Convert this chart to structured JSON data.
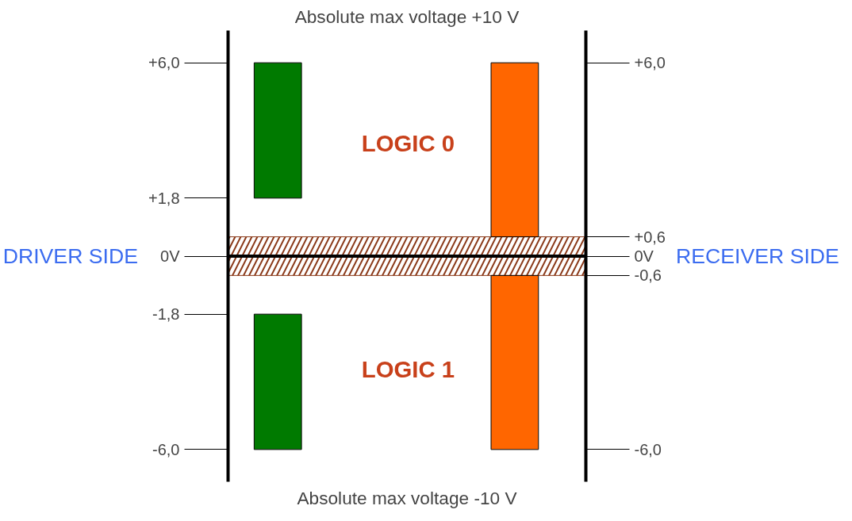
{
  "chart_data": {
    "type": "bar",
    "title": "Absolute max voltage +10 V",
    "ylabel": "DRIVER SIDE",
    "y2label": "RECEIVER SIDE",
    "categories": [
      null,
      null
    ],
    "series": [
      {
        "colors": [
          "#007a00",
          "#ff6600"
        ],
        "values": [
          4.2,
          5.4
        ],
        "base": [
          1.8,
          0.6
        ]
      },
      {
        "colors": [
          "#007a00",
          "#ff6600"
        ],
        "values": [
          4.2,
          5.4
        ],
        "base": [
          -6,
          -6
        ]
      }
    ],
    "ylim": [
      -7,
      7
    ],
    "yticks": [
      {
        "value": 6,
        "label": "+6,0"
      },
      {
        "value": 1.8,
        "label": "+1,8"
      },
      {
        "value": 0,
        "label": "0V"
      },
      {
        "value": -1.8,
        "label": "-1,8"
      },
      {
        "value": -6,
        "label": "-6,0"
      }
    ],
    "y2lim": [
      -7,
      7
    ],
    "y2ticks": [
      {
        "value": 6,
        "label": "+6,0"
      },
      {
        "value": 0.6,
        "label": "+0,6"
      },
      {
        "value": 0,
        "label": "0V"
      },
      {
        "value": -0.6,
        "label": "-0,6"
      },
      {
        "value": -6,
        "label": "-6,0"
      }
    ],
    "bands": [
      {
        "axis": "y",
        "from": -0.6,
        "to": 0.6,
        "color": "#8b3a1a"
      }
    ],
    "ref_lines": [
      {
        "axis": "y",
        "value": 0,
        "color": "#000000"
      }
    ],
    "annotations": [
      "LOGIC 0",
      "LOGIC 1",
      "Absolute max voltage -10 V"
    ],
    "tick_labels": "y",
    "grid": false
  }
}
